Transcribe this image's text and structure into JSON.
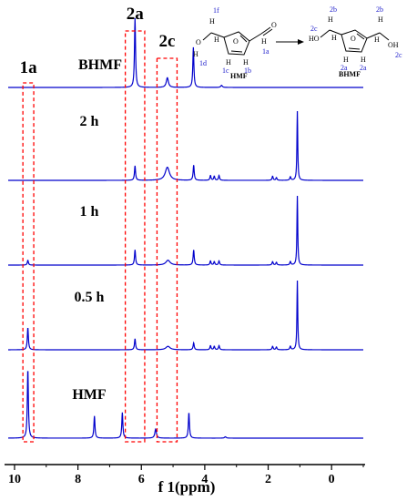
{
  "chart_data": {
    "type": "line",
    "xlabel": "f 1(ppm)",
    "xlim": [
      10.2,
      -1.0
    ],
    "x_reversed": true,
    "x_ticks": [
      10,
      8,
      6,
      4,
      2,
      0
    ],
    "grid": false,
    "series_color": "#0000cc",
    "series": [
      {
        "name": "BHMF",
        "peaks": [
          {
            "ppm": 6.2,
            "height": 1.0,
            "width": 0.02
          },
          {
            "ppm": 5.18,
            "height": 0.14,
            "width": 0.04
          },
          {
            "ppm": 4.36,
            "height": 0.58,
            "width": 0.02
          },
          {
            "ppm": 3.47,
            "height": 0.03,
            "width": 0.03
          }
        ]
      },
      {
        "name": "2 h",
        "peaks": [
          {
            "ppm": 6.2,
            "height": 0.21,
            "width": 0.02
          },
          {
            "ppm": 5.18,
            "height": 0.19,
            "width": 0.08
          },
          {
            "ppm": 4.35,
            "height": 0.22,
            "width": 0.02
          },
          {
            "ppm": 3.82,
            "height": 0.07,
            "width": 0.02
          },
          {
            "ppm": 3.7,
            "height": 0.06,
            "width": 0.02
          },
          {
            "ppm": 3.55,
            "height": 0.07,
            "width": 0.02
          },
          {
            "ppm": 1.86,
            "height": 0.06,
            "width": 0.02
          },
          {
            "ppm": 1.74,
            "height": 0.04,
            "width": 0.02
          },
          {
            "ppm": 1.3,
            "height": 0.05,
            "width": 0.02
          },
          {
            "ppm": 1.08,
            "height": 1.0,
            "width": 0.015
          }
        ]
      },
      {
        "name": "1 h",
        "peaks": [
          {
            "ppm": 9.58,
            "height": 0.07,
            "width": 0.02
          },
          {
            "ppm": 6.2,
            "height": 0.22,
            "width": 0.02
          },
          {
            "ppm": 5.16,
            "height": 0.07,
            "width": 0.08
          },
          {
            "ppm": 4.35,
            "height": 0.22,
            "width": 0.02
          },
          {
            "ppm": 3.82,
            "height": 0.06,
            "width": 0.02
          },
          {
            "ppm": 3.7,
            "height": 0.05,
            "width": 0.02
          },
          {
            "ppm": 3.55,
            "height": 0.06,
            "width": 0.02
          },
          {
            "ppm": 1.86,
            "height": 0.05,
            "width": 0.02
          },
          {
            "ppm": 1.74,
            "height": 0.04,
            "width": 0.02
          },
          {
            "ppm": 1.3,
            "height": 0.05,
            "width": 0.02
          },
          {
            "ppm": 1.08,
            "height": 1.0,
            "width": 0.015
          }
        ]
      },
      {
        "name": "0.5 h",
        "peaks": [
          {
            "ppm": 9.58,
            "height": 0.32,
            "width": 0.02
          },
          {
            "ppm": 6.2,
            "height": 0.16,
            "width": 0.02
          },
          {
            "ppm": 5.16,
            "height": 0.05,
            "width": 0.08
          },
          {
            "ppm": 4.35,
            "height": 0.1,
            "width": 0.02
          },
          {
            "ppm": 3.82,
            "height": 0.06,
            "width": 0.02
          },
          {
            "ppm": 3.7,
            "height": 0.05,
            "width": 0.02
          },
          {
            "ppm": 3.55,
            "height": 0.06,
            "width": 0.02
          },
          {
            "ppm": 1.86,
            "height": 0.05,
            "width": 0.02
          },
          {
            "ppm": 1.74,
            "height": 0.04,
            "width": 0.02
          },
          {
            "ppm": 1.3,
            "height": 0.05,
            "width": 0.02
          },
          {
            "ppm": 1.08,
            "height": 1.0,
            "width": 0.015
          }
        ]
      },
      {
        "name": "HMF",
        "peaks": [
          {
            "ppm": 9.58,
            "height": 1.0,
            "width": 0.02
          },
          {
            "ppm": 7.48,
            "height": 0.32,
            "width": 0.02
          },
          {
            "ppm": 6.6,
            "height": 0.37,
            "width": 0.02
          },
          {
            "ppm": 5.55,
            "height": 0.13,
            "width": 0.03
          },
          {
            "ppm": 4.5,
            "height": 0.37,
            "width": 0.02
          },
          {
            "ppm": 3.35,
            "height": 0.02,
            "width": 0.03
          }
        ]
      }
    ],
    "highlight_boxes": [
      {
        "label": "1a",
        "ppm_range": [
          9.65,
          9.48
        ]
      },
      {
        "label": "2a",
        "ppm_range": [
          6.42,
          5.98
        ]
      },
      {
        "label": "2c",
        "ppm_range": [
          5.42,
          4.96
        ]
      }
    ],
    "highlight_color": "#ff0000"
  },
  "scheme": {
    "reactant_name": "HMF",
    "product_name": "BHMF",
    "hmf_labels": {
      "oh": "O",
      "h_oh": "H",
      "h_ald": "H",
      "o_ald": "O",
      "ring_o": "O",
      "h3": "H",
      "h4": "H",
      "h_ch2a": "H",
      "h_ch2b": "H"
    },
    "hmf_annot": {
      "f1": "1f",
      "d1": "1d",
      "c1": "1c",
      "b1": "1b",
      "a1": "1a"
    },
    "bhmf_labels": {
      "ho_left": "HO",
      "oh_right": "OH",
      "ring_o": "O",
      "h3": "H",
      "h4": "H",
      "h_l1": "H",
      "h_l2": "H",
      "h_r1": "H",
      "h_r2": "H"
    },
    "bhmf_annot": {
      "c2l": "2c",
      "b2l": "2b",
      "b2r": "2b",
      "a2l": "2a",
      "a2r": "2a",
      "c2r": "2c"
    }
  }
}
